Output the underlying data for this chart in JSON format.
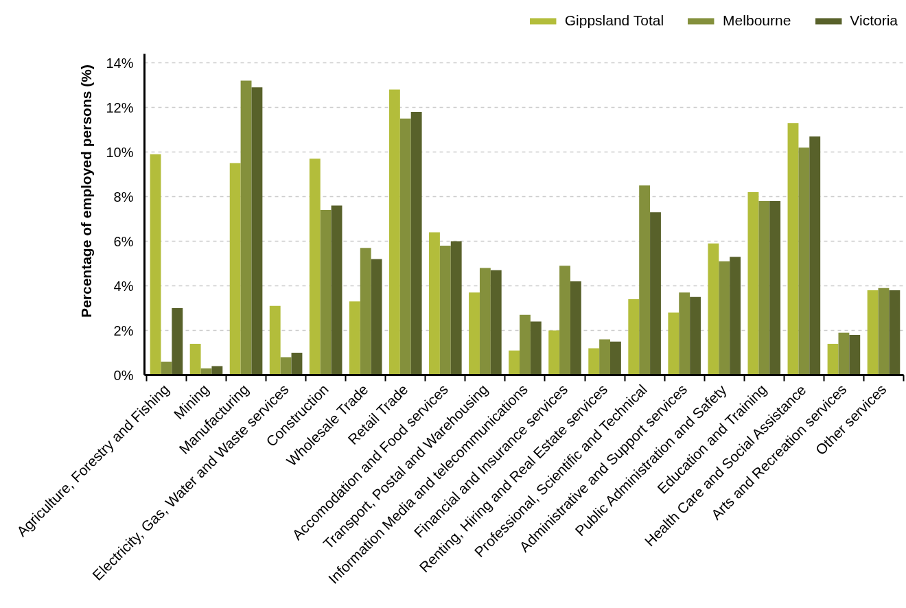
{
  "chart_data": {
    "type": "bar",
    "categories": [
      "Agriculture, Forestry and Fishing",
      "Mining",
      "Manufacturing",
      "Electricity, Gas, Water and Waste services",
      "Construction",
      "Wholesale Trade",
      "Retail Trade",
      "Accomodation and Food services",
      "Transport, Postal and Warehousing",
      "Information Media and telecommunications",
      "Financial and Insurance services",
      "Renting, Hiring and Real Estate services",
      "Professional, Scientific and Technical",
      "Administrative and Support services",
      "Public Administration and Safety",
      "Education and Training",
      "Health Care and Social Assistance",
      "Arts and Recreation services",
      "Other services"
    ],
    "series": [
      {
        "name": "Gippsland Total",
        "color": "#b3bd3b",
        "values": [
          9.9,
          1.4,
          9.5,
          3.1,
          9.7,
          3.3,
          12.8,
          6.4,
          3.7,
          1.1,
          2.0,
          1.2,
          3.4,
          2.8,
          5.9,
          8.2,
          11.3,
          1.4,
          3.8
        ]
      },
      {
        "name": "Melbourne",
        "color": "#84903c",
        "values": [
          0.6,
          0.3,
          13.2,
          0.8,
          7.4,
          5.7,
          11.5,
          5.8,
          4.8,
          2.7,
          4.9,
          1.6,
          8.5,
          3.7,
          5.1,
          7.8,
          10.2,
          1.9,
          3.9
        ]
      },
      {
        "name": "Victoria",
        "color": "#58612a",
        "values": [
          3.0,
          0.4,
          12.9,
          1.0,
          7.6,
          5.2,
          11.8,
          6.0,
          4.7,
          2.4,
          4.2,
          1.5,
          7.3,
          3.5,
          5.3,
          7.8,
          10.7,
          1.8,
          3.8
        ]
      }
    ],
    "ylabel": "Percentage of employed persons (%)",
    "ylim": [
      0,
      14.4
    ],
    "yticks": [
      {
        "value": 0,
        "label": "0%"
      },
      {
        "value": 2,
        "label": "2%"
      },
      {
        "value": 4,
        "label": "4%"
      },
      {
        "value": 6,
        "label": "6%"
      },
      {
        "value": 8,
        "label": "8%"
      },
      {
        "value": 10,
        "label": "10%"
      },
      {
        "value": 12,
        "label": "12%"
      },
      {
        "value": 14,
        "label": "14%"
      }
    ],
    "grid": "y",
    "legend": "top right"
  }
}
